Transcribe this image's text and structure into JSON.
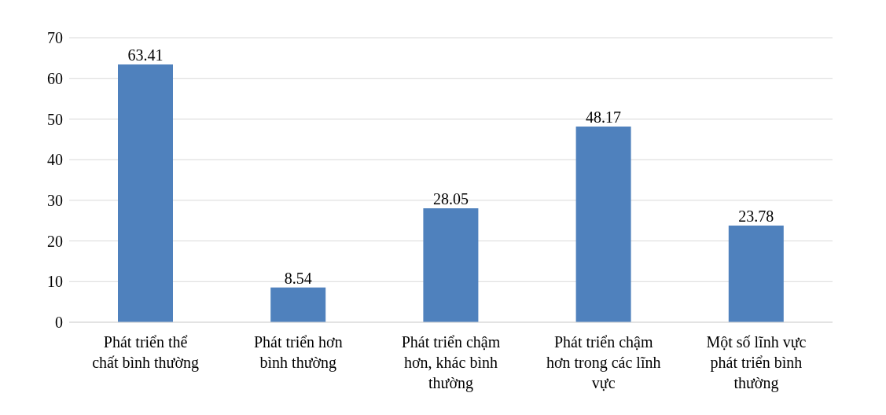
{
  "chart_data": {
    "type": "bar",
    "categories": [
      "Phát triển thể chất bình thường",
      "Phát triển hơn bình thường",
      "Phát triển chậm hơn, khác bình thường",
      "Phát triển chậm hơn trong các lĩnh vực",
      "Một số lĩnh vực phát triển bình thường"
    ],
    "values": [
      63.41,
      8.54,
      28.05,
      48.17,
      23.78
    ],
    "color": "#4f81bd",
    "ylim": [
      0,
      70
    ],
    "yticks": [
      0,
      10,
      20,
      30,
      40,
      50,
      60,
      70
    ],
    "grid": "y",
    "data_labels": true
  }
}
